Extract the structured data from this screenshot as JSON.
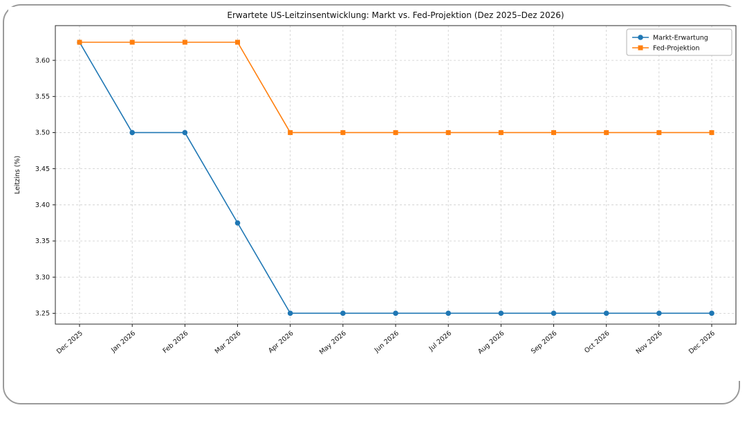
{
  "style": {
    "card_border_color": "#9a9a9a",
    "background_color": "#ffffff"
  },
  "chart_data": {
    "type": "line",
    "title": "Erwartete US-Leitzinsentwicklung: Markt vs. Fed-Projektion (Dez 2025–Dez 2026)",
    "xlabel": "",
    "ylabel": "Leitzins (%)",
    "categories": [
      "Dec 2025",
      "Jan 2026",
      "Feb 2026",
      "Mar 2026",
      "Apr 2026",
      "May 2026",
      "Jun 2026",
      "Jul 2026",
      "Aug 2026",
      "Sep 2026",
      "Oct 2026",
      "Nov 2026",
      "Dec 2026"
    ],
    "series": [
      {
        "name": "Markt-Erwartung",
        "color": "#1f77b4",
        "marker": "circle",
        "values": [
          3.625,
          3.5,
          3.5,
          3.375,
          3.25,
          3.25,
          3.25,
          3.25,
          3.25,
          3.25,
          3.25,
          3.25,
          3.25
        ]
      },
      {
        "name": "Fed-Projektion",
        "color": "#ff7f0e",
        "marker": "square",
        "values": [
          3.625,
          3.625,
          3.625,
          3.625,
          3.5,
          3.5,
          3.5,
          3.5,
          3.5,
          3.5,
          3.5,
          3.5,
          3.5
        ]
      }
    ],
    "yticks": [
      3.25,
      3.3,
      3.35,
      3.4,
      3.45,
      3.5,
      3.55,
      3.6
    ],
    "ylim": [
      3.235,
      3.648
    ],
    "grid": true,
    "grid_color": "#cccccc",
    "legend_position": "upper right"
  }
}
